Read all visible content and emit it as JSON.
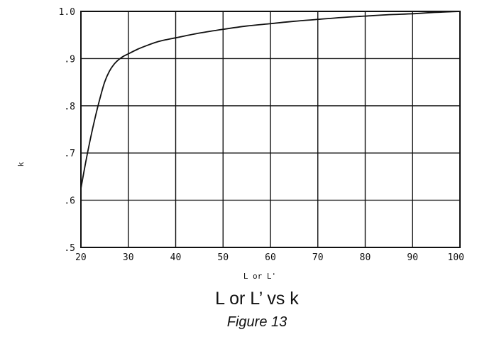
{
  "chart_data": {
    "type": "line",
    "title": "L or L’ vs k",
    "caption": "Figure 13",
    "xlabel": "L or L'",
    "ylabel": "k",
    "xlim": [
      20,
      100
    ],
    "ylim": [
      0.5,
      1.0
    ],
    "xticks": [
      20,
      30,
      40,
      50,
      60,
      70,
      80,
      90,
      100
    ],
    "xtick_labels": [
      "20",
      "30",
      "40",
      "50",
      "60",
      "70",
      "80",
      "90",
      "100"
    ],
    "yticks": [
      0.5,
      0.6,
      0.7,
      0.8,
      0.9,
      1.0
    ],
    "ytick_labels": [
      ".5",
      ".6",
      ".7",
      ".8",
      ".9",
      "1.0"
    ],
    "grid": true,
    "series": [
      {
        "x": [
          20,
          21,
          22,
          23,
          24,
          25,
          26,
          27,
          28,
          29,
          30,
          32,
          34,
          36,
          38,
          40,
          45,
          50,
          55,
          60,
          65,
          70,
          75,
          80,
          85,
          90,
          95,
          100
        ],
        "y": [
          0.625,
          0.68,
          0.73,
          0.775,
          0.815,
          0.85,
          0.873,
          0.888,
          0.898,
          0.905,
          0.91,
          0.92,
          0.928,
          0.935,
          0.94,
          0.944,
          0.954,
          0.962,
          0.969,
          0.974,
          0.979,
          0.983,
          0.987,
          0.99,
          0.993,
          0.995,
          0.998,
          1.0
        ]
      }
    ]
  }
}
